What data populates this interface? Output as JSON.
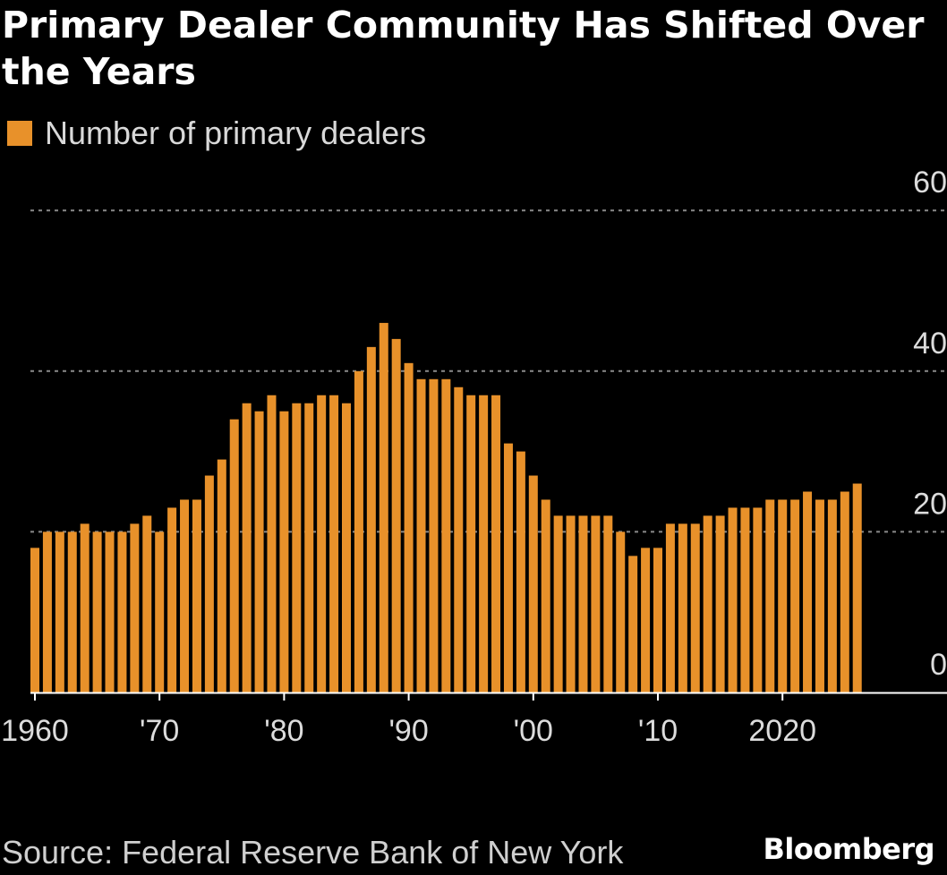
{
  "chart_data": {
    "type": "bar",
    "title": "Primary Dealer Community Has Shifted Over the Years",
    "legend": [
      {
        "label": "Number of primary dealers",
        "color": "#e8912a"
      }
    ],
    "x": [
      1960,
      1961,
      1962,
      1963,
      1964,
      1965,
      1966,
      1967,
      1968,
      1969,
      1970,
      1971,
      1972,
      1973,
      1974,
      1975,
      1976,
      1977,
      1978,
      1979,
      1980,
      1981,
      1982,
      1983,
      1984,
      1985,
      1986,
      1987,
      1988,
      1989,
      1990,
      1991,
      1992,
      1993,
      1994,
      1995,
      1996,
      1997,
      1998,
      1999,
      2000,
      2001,
      2002,
      2003,
      2004,
      2005,
      2006,
      2007,
      2008,
      2009,
      2010,
      2011,
      2012,
      2013,
      2014,
      2015,
      2016,
      2017,
      2018,
      2019,
      2020,
      2021,
      2022,
      2023,
      2024,
      2025,
      2026
    ],
    "values": [
      18,
      20,
      20,
      20,
      21,
      20,
      20,
      20,
      21,
      22,
      20,
      23,
      24,
      24,
      27,
      29,
      34,
      36,
      35,
      37,
      35,
      36,
      36,
      37,
      37,
      36,
      40,
      43,
      46,
      44,
      41,
      39,
      39,
      39,
      38,
      37,
      37,
      37,
      31,
      30,
      27,
      24,
      22,
      22,
      22,
      22,
      22,
      20,
      17,
      18,
      18,
      21,
      21,
      21,
      22,
      22,
      23,
      23,
      23,
      24,
      24,
      24,
      25,
      24,
      24,
      25,
      26
    ],
    "xticks": [
      {
        "value": 1960,
        "label": "1960"
      },
      {
        "value": 1970,
        "label": "'70"
      },
      {
        "value": 1980,
        "label": "'80"
      },
      {
        "value": 1990,
        "label": "'90"
      },
      {
        "value": 2000,
        "label": "'00"
      },
      {
        "value": 2010,
        "label": "'10"
      },
      {
        "value": 2020,
        "label": "2020"
      }
    ],
    "yticks": [
      0,
      20,
      40,
      60
    ],
    "ylim": [
      0,
      60
    ],
    "xlabel": "",
    "ylabel": "",
    "grid": true,
    "colors": {
      "bar": "#e8912a",
      "grid": "#8a8a8a",
      "axis": "#ffffff",
      "background": "#000000"
    }
  },
  "title": "Primary Dealer Community Has Shifted Over the Years",
  "legend_label": "Number of primary dealers",
  "source": "Source: Federal Reserve Bank of New York",
  "brand": "Bloomberg"
}
